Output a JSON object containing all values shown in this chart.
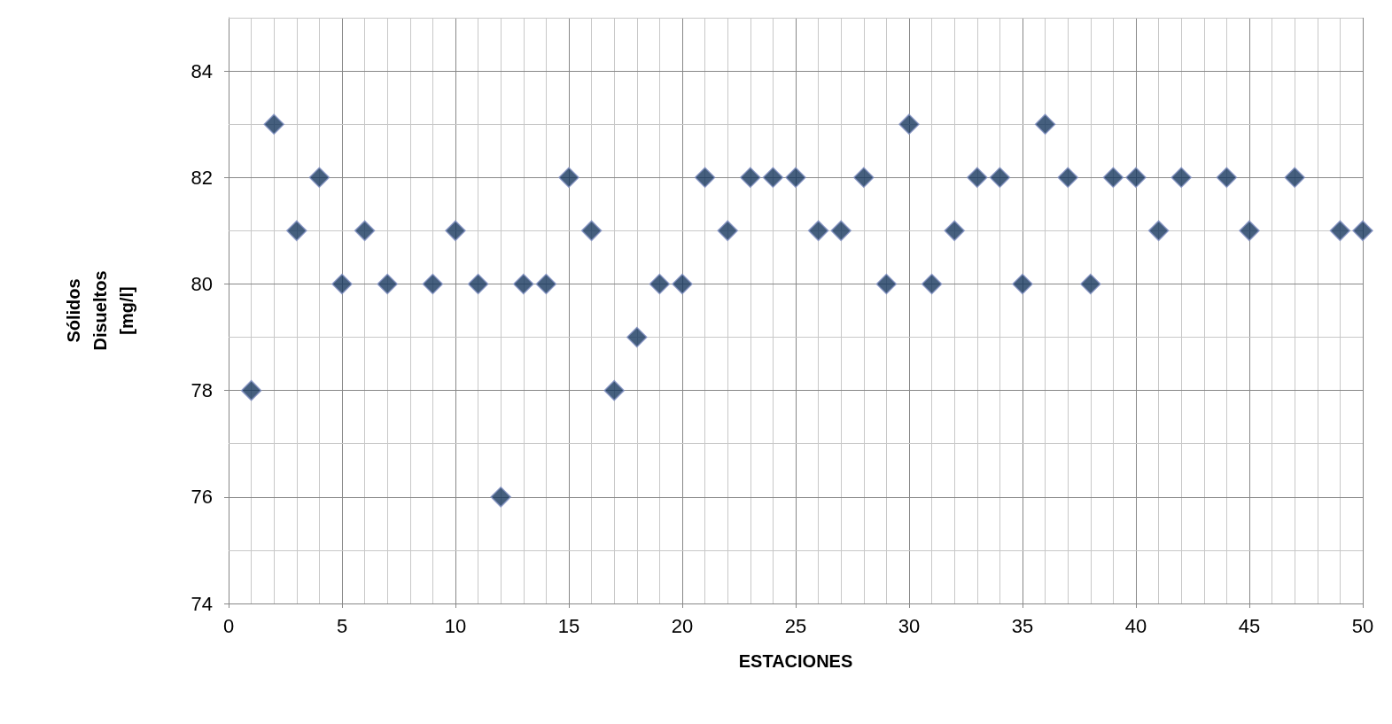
{
  "chart_data": {
    "type": "scatter",
    "xlabel": "ESTACIONES",
    "ylabel": "Sólidos Disueltos [mg/l]",
    "x": [
      1,
      2,
      3,
      4,
      5,
      6,
      7,
      9,
      10,
      11,
      12,
      13,
      14,
      15,
      16,
      17,
      18,
      19,
      20,
      21,
      22,
      23,
      24,
      25,
      26,
      27,
      28,
      29,
      30,
      31,
      32,
      33,
      34,
      35,
      36,
      37,
      38,
      39,
      40,
      41,
      42,
      44,
      45,
      47,
      49,
      50
    ],
    "values": [
      78,
      83,
      81,
      82,
      80,
      81,
      80,
      80,
      81,
      80,
      76,
      80,
      80,
      82,
      81,
      78,
      79,
      80,
      80,
      82,
      81,
      82,
      82,
      82,
      81,
      81,
      82,
      80,
      83,
      80,
      81,
      82,
      82,
      80,
      83,
      82,
      80,
      82,
      82,
      81,
      82,
      82,
      81,
      82,
      81,
      81
    ],
    "color": "#17375e",
    "marker": "diamond",
    "grid": true,
    "xlim": [
      0,
      50
    ],
    "xticks": [
      0,
      5,
      10,
      15,
      20,
      25,
      30,
      35,
      40,
      45,
      50
    ],
    "ylim": [
      74,
      85
    ],
    "yticks": [
      74,
      76,
      78,
      80,
      82,
      84
    ]
  }
}
